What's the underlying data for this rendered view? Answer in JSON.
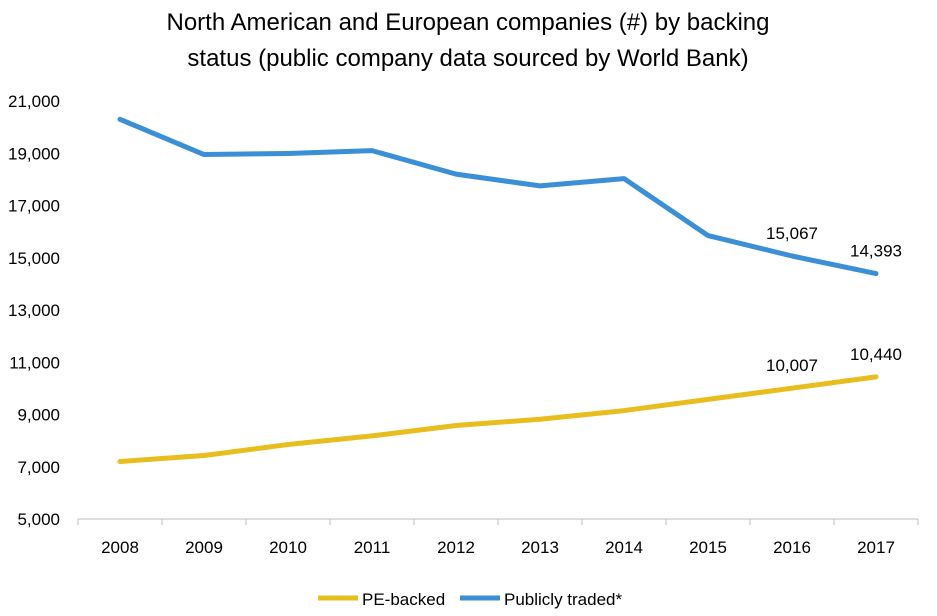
{
  "chart_data": {
    "type": "line",
    "title_lines": [
      "North American and European companies (#) by backing",
      "status (public company data sourced by World Bank)"
    ],
    "categories": [
      "2008",
      "2009",
      "2010",
      "2011",
      "2012",
      "2013",
      "2014",
      "2015",
      "2016",
      "2017"
    ],
    "series": [
      {
        "name": "PE-backed",
        "color": "#E8BE1F",
        "values": [
          7200,
          7430,
          7850,
          8180,
          8580,
          8820,
          9150,
          9580,
          10007,
          10440
        ]
      },
      {
        "name": "Publicly traded*",
        "color": "#3B8FD6",
        "values": [
          20300,
          18950,
          18990,
          19100,
          18200,
          17750,
          18030,
          15850,
          15067,
          14393
        ]
      }
    ],
    "ylim": [
      5000,
      21000
    ],
    "yticks": [
      5000,
      7000,
      9000,
      11000,
      13000,
      15000,
      17000,
      19000,
      21000
    ],
    "ytick_labels": [
      "5,000",
      "7,000",
      "9,000",
      "11,000",
      "13,000",
      "15,000",
      "17,000",
      "19,000",
      "21,000"
    ],
    "data_labels": [
      {
        "series": 1,
        "index": 8,
        "text": "15,067"
      },
      {
        "series": 1,
        "index": 9,
        "text": "14,393"
      },
      {
        "series": 0,
        "index": 8,
        "text": "10,007"
      },
      {
        "series": 0,
        "index": 9,
        "text": "10,440"
      }
    ],
    "grid": false,
    "legend_position": "bottom"
  }
}
